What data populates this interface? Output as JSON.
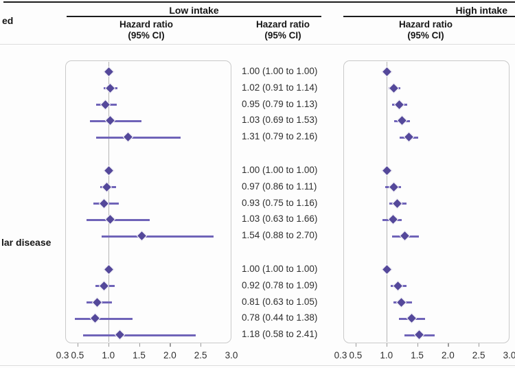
{
  "header": {
    "top_left_partial": "ed",
    "low_intake_title": "Low intake",
    "high_intake_title": "High intake",
    "hr_header_line1": "Hazard ratio",
    "hr_header_line2": "(95% CI)"
  },
  "left_labels": {
    "group3_partial": "lar disease"
  },
  "colors": {
    "diamond": "#54489a",
    "ci_line": "#6f63b8",
    "reference_line": "#b4b4b4",
    "box_border": "#c9c9c9",
    "rule_dark": "#1b1b1b",
    "rule_light": "#dcdcdc",
    "text": "#2e2e2e"
  },
  "chart_data": {
    "type": "forest",
    "x_range": [
      0.3,
      3.0
    ],
    "reference_line": 1.0,
    "tick_marks": [
      0.5,
      1.0,
      1.5,
      2.0,
      2.5
    ],
    "tick_labels": [
      "0.3",
      "0.5",
      "1.0",
      "1.5",
      "2.0",
      "2.5",
      "3.0"
    ],
    "tick_label_values": [
      0.3,
      0.5,
      1.0,
      1.5,
      2.0,
      2.5,
      3.0
    ],
    "panels": [
      {
        "title": "Low intake",
        "show_values_column": true,
        "groups": [
          {
            "rows": [
              {
                "hr": 1.0,
                "lo": 1.0,
                "hi": 1.0,
                "text": "1.00 (1.00 to 1.00)"
              },
              {
                "hr": 1.02,
                "lo": 0.91,
                "hi": 1.14,
                "text": "1.02 (0.91 to 1.14)"
              },
              {
                "hr": 0.95,
                "lo": 0.79,
                "hi": 1.13,
                "text": "0.95 (0.79 to 1.13)"
              },
              {
                "hr": 1.03,
                "lo": 0.69,
                "hi": 1.53,
                "text": "1.03 (0.69 to 1.53)"
              },
              {
                "hr": 1.31,
                "lo": 0.79,
                "hi": 2.16,
                "text": "1.31 (0.79 to 2.16)"
              }
            ]
          },
          {
            "rows": [
              {
                "hr": 1.0,
                "lo": 1.0,
                "hi": 1.0,
                "text": "1.00 (1.00 to 1.00)"
              },
              {
                "hr": 0.97,
                "lo": 0.86,
                "hi": 1.11,
                "text": "0.97 (0.86 to 1.11)"
              },
              {
                "hr": 0.93,
                "lo": 0.75,
                "hi": 1.16,
                "text": "0.93 (0.75 to 1.16)"
              },
              {
                "hr": 1.03,
                "lo": 0.63,
                "hi": 1.66,
                "text": "1.03 (0.63 to 1.66)"
              },
              {
                "hr": 1.54,
                "lo": 0.88,
                "hi": 2.7,
                "text": "1.54 (0.88 to 2.70)"
              }
            ]
          },
          {
            "rows": [
              {
                "hr": 1.0,
                "lo": 1.0,
                "hi": 1.0,
                "text": "1.00 (1.00 to 1.00)"
              },
              {
                "hr": 0.92,
                "lo": 0.78,
                "hi": 1.09,
                "text": "0.92 (0.78 to 1.09)"
              },
              {
                "hr": 0.81,
                "lo": 0.63,
                "hi": 1.05,
                "text": "0.81 (0.63 to 1.05)"
              },
              {
                "hr": 0.78,
                "lo": 0.44,
                "hi": 1.38,
                "text": "0.78 (0.44 to 1.38)"
              },
              {
                "hr": 1.18,
                "lo": 0.58,
                "hi": 2.41,
                "text": "1.18 (0.58 to 2.41)"
              }
            ]
          }
        ]
      },
      {
        "title": "High intake",
        "show_values_column": false,
        "groups": [
          {
            "rows": [
              {
                "hr": 1.0,
                "lo": 1.0,
                "hi": 1.0
              },
              {
                "hr": 1.12,
                "lo": 1.03,
                "hi": 1.22
              },
              {
                "hr": 1.2,
                "lo": 1.08,
                "hi": 1.33
              },
              {
                "hr": 1.25,
                "lo": 1.12,
                "hi": 1.37
              },
              {
                "hr": 1.36,
                "lo": 1.2,
                "hi": 1.51
              }
            ]
          },
          {
            "rows": [
              {
                "hr": 1.0,
                "lo": 1.0,
                "hi": 1.0
              },
              {
                "hr": 1.11,
                "lo": 0.97,
                "hi": 1.23
              },
              {
                "hr": 1.17,
                "lo": 1.04,
                "hi": 1.31
              },
              {
                "hr": 1.1,
                "lo": 0.93,
                "hi": 1.24
              },
              {
                "hr": 1.29,
                "lo": 1.08,
                "hi": 1.52
              }
            ]
          },
          {
            "rows": [
              {
                "hr": 1.0,
                "lo": 1.0,
                "hi": 1.0
              },
              {
                "hr": 1.18,
                "lo": 1.06,
                "hi": 1.31
              },
              {
                "hr": 1.24,
                "lo": 1.1,
                "hi": 1.4
              },
              {
                "hr": 1.4,
                "lo": 1.19,
                "hi": 1.62
              },
              {
                "hr": 1.53,
                "lo": 1.28,
                "hi": 1.77
              }
            ]
          }
        ]
      }
    ]
  }
}
